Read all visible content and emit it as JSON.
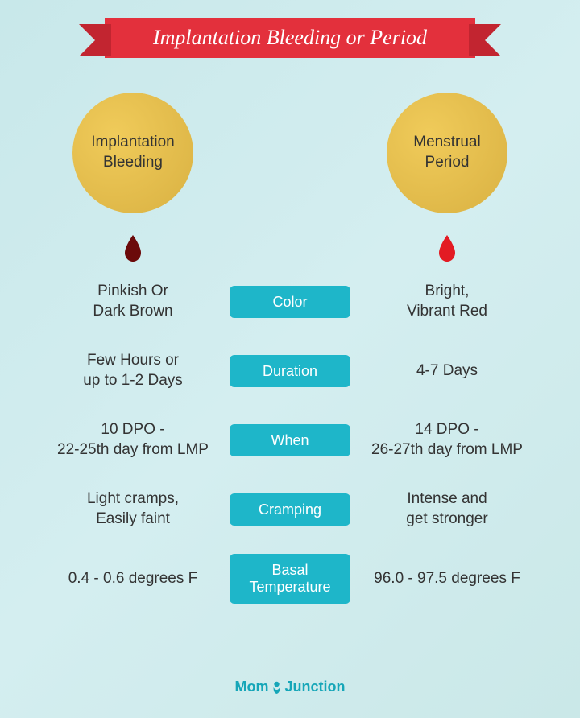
{
  "title": "Implantation Bleeding or Period",
  "banner_bg": "#e3303c",
  "banner_fold": "#c22530",
  "circle_left_label": "Implantation\nBleeding",
  "circle_right_label": "Menstrual\nPeriod",
  "circle_color": "#e2bf4f",
  "drop_left_color": "#6b0a0a",
  "drop_right_color": "#e31b23",
  "pill_color": "#1eb6c9",
  "rows": [
    {
      "left": "Pinkish Or\nDark Brown",
      "label": "Color",
      "right": "Bright,\nVibrant Red"
    },
    {
      "left": "Few Hours or\nup to 1-2 Days",
      "label": "Duration",
      "right": "4-7 Days"
    },
    {
      "left": "10 DPO -\n22-25th day from LMP",
      "label": "When",
      "right": "14 DPO -\n26-27th day from LMP"
    },
    {
      "left": "Light cramps,\nEasily faint",
      "label": "Cramping",
      "right": "Intense and\nget stronger"
    },
    {
      "left": "0.4 - 0.6 degrees F",
      "label": "Basal\nTemperature",
      "right": "96.0 - 97.5 degrees F"
    }
  ],
  "brand_pre": "Mom",
  "brand_post": "Junction",
  "brand_color": "#16a6b8"
}
